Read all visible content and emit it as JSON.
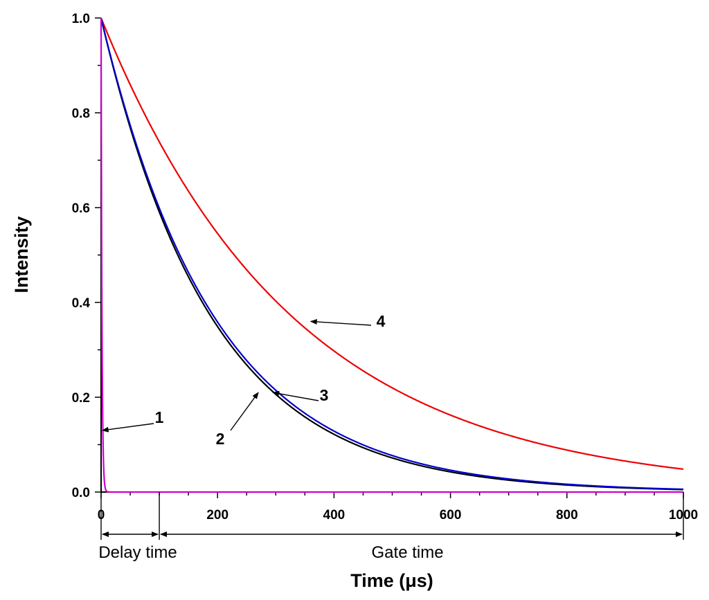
{
  "chart_data": {
    "type": "line",
    "xlabel": "Time (μs)",
    "ylabel": "Intensity",
    "xlim": [
      0,
      1000
    ],
    "ylim": [
      0,
      1.0
    ],
    "x_ticks": [
      0,
      200,
      400,
      600,
      800,
      1000
    ],
    "y_ticks": [
      0.0,
      0.2,
      0.4,
      0.6,
      0.8,
      1.0
    ],
    "x_tick_labels": [
      "0",
      "200",
      "400",
      "600",
      "800",
      "1000"
    ],
    "y_tick_labels": [
      "0.0",
      "0.2",
      "0.4",
      "0.6",
      "0.8",
      "1.0"
    ],
    "grid": false,
    "series": [
      {
        "label": "1",
        "color": "#cc00cc",
        "lifetime_us": 1.5,
        "x": [
          0,
          1,
          2,
          3,
          4,
          5,
          6,
          8,
          10,
          15,
          20,
          50,
          100,
          1000
        ],
        "y": [
          1.0,
          0.51,
          0.26,
          0.14,
          0.07,
          0.035,
          0.018,
          0.005,
          0.001,
          0.0,
          0.0,
          0.0,
          0.0,
          0.0
        ]
      },
      {
        "label": "2",
        "color": "#000000",
        "lifetime_us": 190,
        "x": [
          0,
          50,
          100,
          150,
          200,
          250,
          300,
          350,
          400,
          450,
          500,
          600,
          700,
          800,
          900,
          1000
        ],
        "y": [
          1.0,
          0.769,
          0.591,
          0.454,
          0.349,
          0.268,
          0.206,
          0.159,
          0.122,
          0.094,
          0.072,
          0.043,
          0.025,
          0.015,
          0.009,
          0.005
        ]
      },
      {
        "label": "3",
        "color": "#0000cc",
        "lifetime_us": 195,
        "x": [
          0,
          50,
          100,
          150,
          200,
          250,
          300,
          350,
          400,
          450,
          500,
          600,
          700,
          800,
          900,
          1000
        ],
        "y": [
          1.0,
          0.774,
          0.599,
          0.463,
          0.359,
          0.277,
          0.215,
          0.166,
          0.128,
          0.1,
          0.077,
          0.046,
          0.028,
          0.017,
          0.01,
          0.006
        ]
      },
      {
        "label": "4",
        "color": "#ee0000",
        "lifetime_us": 330,
        "x": [
          0,
          50,
          100,
          150,
          200,
          250,
          300,
          350,
          400,
          450,
          500,
          600,
          700,
          800,
          900,
          1000
        ],
        "y": [
          1.0,
          0.859,
          0.739,
          0.635,
          0.546,
          0.469,
          0.403,
          0.346,
          0.297,
          0.256,
          0.22,
          0.162,
          0.12,
          0.089,
          0.065,
          0.048
        ]
      }
    ],
    "annotations": [
      {
        "text": "1",
        "arrow_to": [
          2,
          0.13
        ]
      },
      {
        "text": "2",
        "arrow_to": [
          270,
          0.21
        ]
      },
      {
        "text": "3",
        "arrow_to": [
          295,
          0.21
        ]
      },
      {
        "text": "4",
        "arrow_to": [
          360,
          0.36
        ]
      }
    ],
    "regions": [
      {
        "text": "Delay time",
        "x_range": [
          0,
          100
        ]
      },
      {
        "text": "Gate time",
        "x_range": [
          100,
          1000
        ]
      }
    ]
  }
}
